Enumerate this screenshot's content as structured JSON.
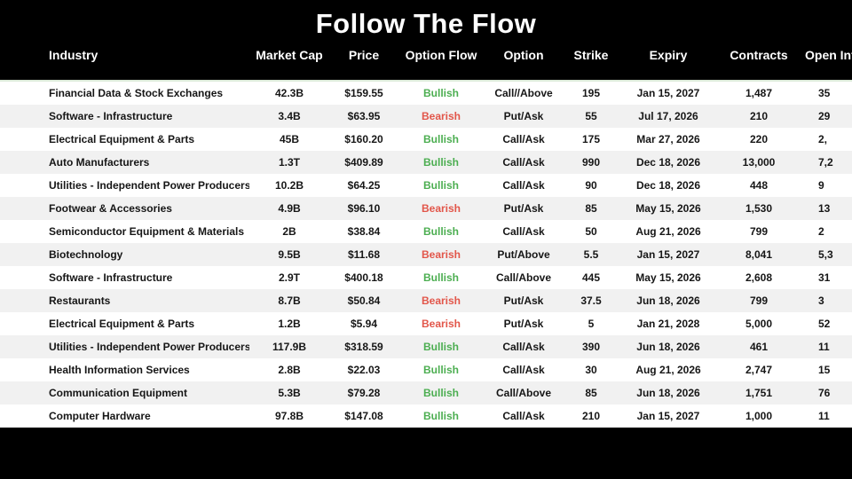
{
  "title": "Follow The Flow",
  "colors": {
    "background": "#000000",
    "header_text": "#ffffff",
    "row_text": "#161616",
    "row_alt_background": "#f1f1f1",
    "bullish": "#4cae51",
    "bearish": "#e2564a",
    "header_divider": "#dcead9"
  },
  "chart_data": {
    "type": "table",
    "title": "Follow The Flow",
    "columns": [
      {
        "key": "industry",
        "label": "Industry"
      },
      {
        "key": "market_cap",
        "label": "Market Cap"
      },
      {
        "key": "price",
        "label": "Price"
      },
      {
        "key": "option_flow",
        "label": "Option Flow"
      },
      {
        "key": "option",
        "label": "Option"
      },
      {
        "key": "strike",
        "label": "Strike"
      },
      {
        "key": "expiry",
        "label": "Expiry"
      },
      {
        "key": "contracts",
        "label": "Contracts"
      },
      {
        "key": "open_interest",
        "label": "Open Interest"
      }
    ],
    "rows": [
      {
        "industry": "Financial Data & Stock Exchanges",
        "market_cap": "42.3B",
        "price": "$159.55",
        "option_flow": "Bullish",
        "option": "Call//Above",
        "strike": "195",
        "expiry": "Jan 15, 2027",
        "contracts": "1,487",
        "open_interest": "35"
      },
      {
        "industry": "Software - Infrastructure",
        "market_cap": "3.4B",
        "price": "$63.95",
        "option_flow": "Bearish",
        "option": "Put/Ask",
        "strike": "55",
        "expiry": "Jul 17, 2026",
        "contracts": "210",
        "open_interest": "29"
      },
      {
        "industry": "Electrical Equipment & Parts",
        "market_cap": "45B",
        "price": "$160.20",
        "option_flow": "Bullish",
        "option": "Call/Ask",
        "strike": "175",
        "expiry": "Mar 27, 2026",
        "contracts": "220",
        "open_interest": "2,"
      },
      {
        "industry": "Auto Manufacturers",
        "market_cap": "1.3T",
        "price": "$409.89",
        "option_flow": "Bullish",
        "option": "Call/Ask",
        "strike": "990",
        "expiry": "Dec 18, 2026",
        "contracts": "13,000",
        "open_interest": "7,2"
      },
      {
        "industry": "Utilities - Independent Power Producers",
        "market_cap": "10.2B",
        "price": "$64.25",
        "option_flow": "Bullish",
        "option": "Call/Ask",
        "strike": "90",
        "expiry": "Dec 18, 2026",
        "contracts": "448",
        "open_interest": "9"
      },
      {
        "industry": "Footwear & Accessories",
        "market_cap": "4.9B",
        "price": "$96.10",
        "option_flow": "Bearish",
        "option": "Put/Ask",
        "strike": "85",
        "expiry": "May 15, 2026",
        "contracts": "1,530",
        "open_interest": "13"
      },
      {
        "industry": "Semiconductor Equipment & Materials",
        "market_cap": "2B",
        "price": "$38.84",
        "option_flow": "Bullish",
        "option": "Call/Ask",
        "strike": "50",
        "expiry": "Aug 21, 2026",
        "contracts": "799",
        "open_interest": "2"
      },
      {
        "industry": "Biotechnology",
        "market_cap": "9.5B",
        "price": "$11.68",
        "option_flow": "Bearish",
        "option": "Put/Above",
        "strike": "5.5",
        "expiry": "Jan 15, 2027",
        "contracts": "8,041",
        "open_interest": "5,3"
      },
      {
        "industry": "Software - Infrastructure",
        "market_cap": "2.9T",
        "price": "$400.18",
        "option_flow": "Bullish",
        "option": "Call/Above",
        "strike": "445",
        "expiry": "May 15, 2026",
        "contracts": "2,608",
        "open_interest": "31"
      },
      {
        "industry": "Restaurants",
        "market_cap": "8.7B",
        "price": "$50.84",
        "option_flow": "Bearish",
        "option": "Put/Ask",
        "strike": "37.5",
        "expiry": "Jun 18, 2026",
        "contracts": "799",
        "open_interest": "3"
      },
      {
        "industry": "Electrical Equipment & Parts",
        "market_cap": "1.2B",
        "price": "$5.94",
        "option_flow": "Bearish",
        "option": "Put/Ask",
        "strike": "5",
        "expiry": "Jan 21, 2028",
        "contracts": "5,000",
        "open_interest": "52"
      },
      {
        "industry": "Utilities - Independent Power Producers",
        "market_cap": "117.9B",
        "price": "$318.59",
        "option_flow": "Bullish",
        "option": "Call/Ask",
        "strike": "390",
        "expiry": "Jun 18, 2026",
        "contracts": "461",
        "open_interest": "11"
      },
      {
        "industry": "Health Information Services",
        "market_cap": "2.8B",
        "price": "$22.03",
        "option_flow": "Bullish",
        "option": "Call/Ask",
        "strike": "30",
        "expiry": "Aug 21, 2026",
        "contracts": "2,747",
        "open_interest": "15"
      },
      {
        "industry": "Communication Equipment",
        "market_cap": "5.3B",
        "price": "$79.28",
        "option_flow": "Bullish",
        "option": "Call/Above",
        "strike": "85",
        "expiry": "Jun 18, 2026",
        "contracts": "1,751",
        "open_interest": "76"
      },
      {
        "industry": "Computer Hardware",
        "market_cap": "97.8B",
        "price": "$147.08",
        "option_flow": "Bullish",
        "option": "Call/Ask",
        "strike": "210",
        "expiry": "Jan 15, 2027",
        "contracts": "1,000",
        "open_interest": "11"
      }
    ]
  }
}
